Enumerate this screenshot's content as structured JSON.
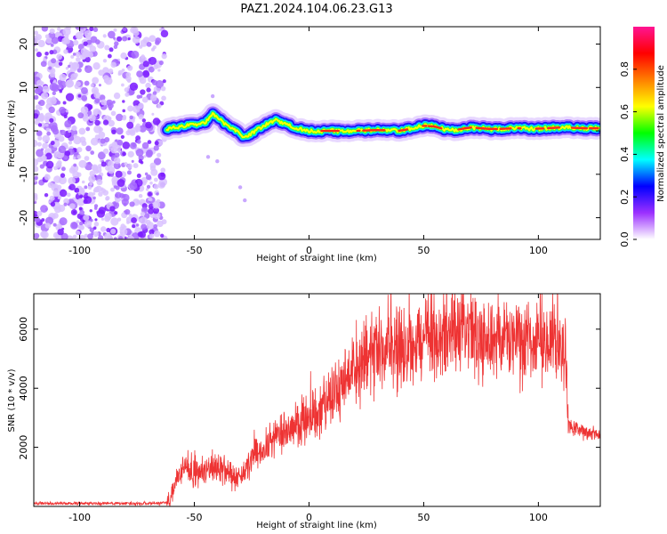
{
  "title": "PAZ1.2024.104.06.23.G13",
  "chart_data": [
    {
      "type": "heatmap",
      "xlabel": "Height of straight line (km)",
      "ylabel": "Frequency (Hz)",
      "xlim": [
        -120,
        127
      ],
      "ylim": [
        -25,
        24
      ],
      "xticks": [
        "-100",
        "-50",
        "0",
        "50",
        "100"
      ],
      "xtick_values": [
        -100,
        -50,
        0,
        50,
        100
      ],
      "yticks": [
        "-20",
        "-10",
        "0",
        "10",
        "20"
      ],
      "ytick_values": [
        -20,
        -10,
        0,
        10,
        20
      ],
      "colorbar": {
        "label": "Normalized spectral amplitude",
        "range": [
          0,
          1
        ],
        "ticks": [
          "0.0",
          "0.2",
          "0.4",
          "0.6",
          "0.8"
        ],
        "tick_values": [
          0.0,
          0.2,
          0.4,
          0.6,
          0.8
        ],
        "colors": [
          "#ffffff",
          "#9b30ff",
          "#0000ff",
          "#00ffff",
          "#00ff00",
          "#ffff00",
          "#ff7f00",
          "#ff0000",
          "#ff1493"
        ]
      },
      "noise_region_x": [
        -120,
        -63
      ],
      "ridge": {
        "x": [
          -62,
          -55,
          -50,
          -45,
          -42,
          -38,
          -33,
          -28,
          -25,
          -20,
          -15,
          -10,
          -5,
          0,
          10,
          20,
          30,
          40,
          50,
          55,
          60,
          65,
          70,
          80,
          90,
          100,
          110,
          120,
          127
        ],
        "y": [
          0.5,
          1.0,
          1.5,
          2.0,
          3.8,
          2.2,
          0.5,
          -1.5,
          -0.5,
          1.0,
          2.5,
          1.5,
          0.5,
          0.0,
          0.0,
          0.0,
          0.2,
          0.0,
          1.2,
          1.0,
          0.2,
          0.3,
          0.8,
          0.4,
          0.6,
          0.5,
          0.8,
          0.6,
          0.6
        ]
      },
      "outliers": [
        [
          -30,
          -13
        ],
        [
          -28,
          -16
        ],
        [
          -40,
          -7
        ],
        [
          -44,
          -6
        ],
        [
          -42,
          8
        ]
      ]
    },
    {
      "type": "line",
      "xlabel": "Height of straight line (km)",
      "ylabel": "SNR (10 * v/v)",
      "xlim": [
        -120,
        127
      ],
      "ylim": [
        0,
        7200
      ],
      "xticks": [
        "-100",
        "-50",
        "0",
        "50",
        "100"
      ],
      "xtick_values": [
        -100,
        -50,
        0,
        50,
        100
      ],
      "yticks": [
        "2000",
        "4000",
        "6000"
      ],
      "ytick_values": [
        2000,
        4000,
        6000
      ],
      "series_color": "#ee3333",
      "trend": {
        "x": [
          -120,
          -70,
          -62,
          -60,
          -58,
          -55,
          -50,
          -45,
          -40,
          -35,
          -30,
          -25,
          -20,
          -15,
          -10,
          0,
          10,
          20,
          30,
          40,
          50,
          60,
          70,
          80,
          90,
          100,
          110,
          112,
          113,
          120,
          127
        ],
        "y": [
          100,
          100,
          120,
          300,
          900,
          1300,
          1100,
          1200,
          1300,
          1100,
          1000,
          1600,
          2000,
          2200,
          2500,
          3000,
          3800,
          4600,
          5200,
          5500,
          5650,
          5750,
          5800,
          5700,
          5550,
          5450,
          5400,
          5400,
          2700,
          2500,
          2450
        ]
      }
    }
  ]
}
